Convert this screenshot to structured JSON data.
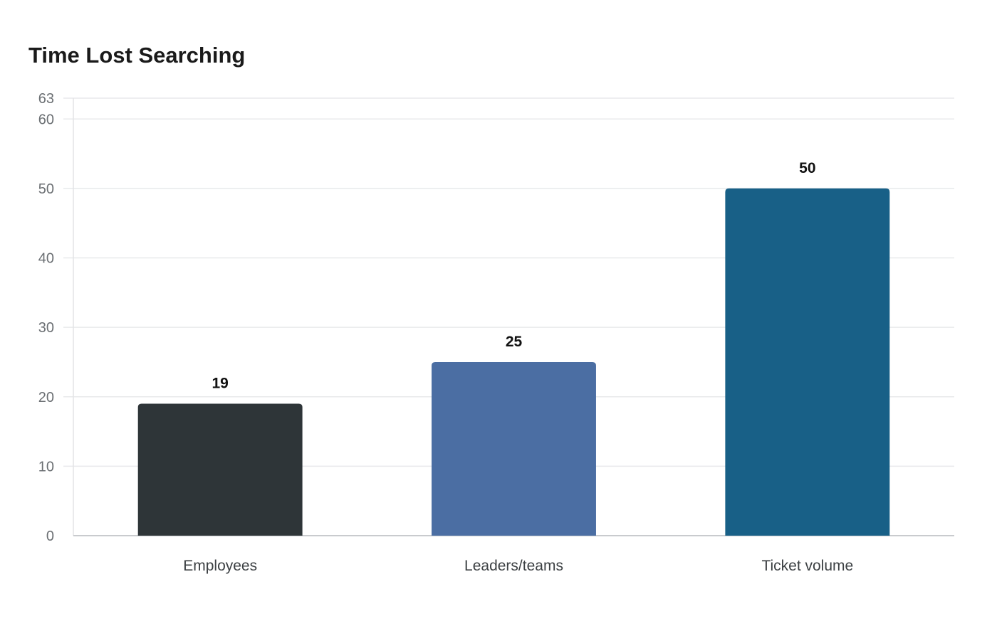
{
  "chart_data": {
    "type": "bar",
    "title": "Time Lost Searching",
    "xlabel": "",
    "ylabel": "",
    "categories": [
      "Employees",
      "Leaders/teams",
      "Ticket volume"
    ],
    "values": [
      19,
      25,
      50
    ],
    "data_labels": [
      "19",
      "25",
      "50"
    ],
    "colors": [
      "#2e3538",
      "#4b6ea3",
      "#186087"
    ],
    "ylim": [
      0,
      63
    ],
    "yticks": [
      0,
      10,
      20,
      30,
      40,
      50,
      60,
      63
    ],
    "ytick_labels": [
      "0",
      "10",
      "20",
      "30",
      "40",
      "50",
      "60",
      "63"
    ],
    "grid": true,
    "legend": "none"
  }
}
